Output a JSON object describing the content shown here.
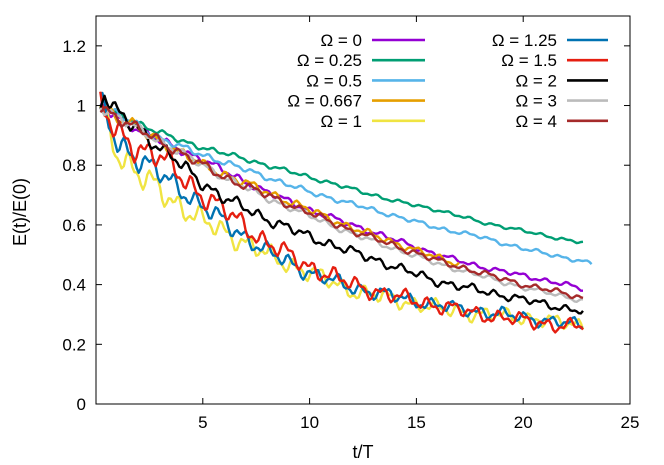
{
  "chart_data": {
    "type": "line",
    "title": "",
    "xlabel": "t/T",
    "ylabel": "E(t)/E(0)",
    "xlim": [
      0,
      25
    ],
    "ylim": [
      0,
      1.3
    ],
    "x_ticks": [
      "5",
      "10",
      "15",
      "20",
      "25"
    ],
    "y_ticks": [
      "0",
      "0.2",
      "0.4",
      "0.6",
      "0.8",
      "1",
      "1.2"
    ],
    "grid": false,
    "legend_position": "top-right, two columns",
    "series": [
      {
        "name": "Ω = 0",
        "color": "#9400d3",
        "x": [
          0.2,
          1,
          2,
          3,
          4,
          5,
          6,
          8,
          10,
          12,
          14,
          16,
          18,
          20,
          22,
          22.8
        ],
        "y": [
          1.0,
          0.96,
          0.92,
          0.88,
          0.85,
          0.82,
          0.78,
          0.71,
          0.65,
          0.6,
          0.55,
          0.5,
          0.46,
          0.43,
          0.4,
          0.385
        ],
        "noise": 0.012
      },
      {
        "name": "Ω = 0.25",
        "color": "#009e73",
        "x": [
          0.2,
          1,
          2,
          3,
          4,
          6,
          8,
          10,
          12,
          14,
          16,
          18,
          20,
          22,
          22.8
        ],
        "y": [
          1.0,
          0.97,
          0.94,
          0.91,
          0.88,
          0.84,
          0.8,
          0.76,
          0.72,
          0.68,
          0.65,
          0.61,
          0.58,
          0.55,
          0.54
        ],
        "noise": 0.008
      },
      {
        "name": "Ω = 0.5",
        "color": "#56b4e9",
        "x": [
          0.2,
          1,
          2,
          3,
          4,
          6,
          8,
          10,
          12,
          14,
          16,
          18,
          20,
          22,
          23.2
        ],
        "y": [
          1.0,
          0.97,
          0.93,
          0.89,
          0.86,
          0.81,
          0.76,
          0.71,
          0.67,
          0.63,
          0.59,
          0.56,
          0.52,
          0.49,
          0.47
        ],
        "noise": 0.01
      },
      {
        "name": "Ω = 0.667",
        "color": "#e69f00",
        "x": [
          0.2,
          1,
          2,
          3,
          4,
          5,
          6,
          8,
          10,
          12,
          14,
          16,
          17
        ],
        "y": [
          1.0,
          0.96,
          0.92,
          0.88,
          0.84,
          0.8,
          0.77,
          0.71,
          0.65,
          0.59,
          0.54,
          0.49,
          0.47
        ],
        "noise": 0.015
      },
      {
        "name": "Ω = 1",
        "color": "#f0e442",
        "x": [
          0.2,
          1,
          2,
          3,
          4,
          5,
          6,
          8,
          10,
          12,
          14,
          16,
          18,
          20,
          22,
          22.8
        ],
        "y": [
          1.0,
          0.85,
          0.76,
          0.72,
          0.66,
          0.61,
          0.58,
          0.5,
          0.44,
          0.38,
          0.35,
          0.32,
          0.3,
          0.29,
          0.27,
          0.265
        ],
        "noise": 0.035
      },
      {
        "name": "Ω = 1.25",
        "color": "#0072b2",
        "x": [
          0.2,
          1,
          2,
          3,
          4,
          5,
          6,
          8,
          10,
          12,
          14,
          16,
          18,
          20,
          22,
          22.8
        ],
        "y": [
          1.0,
          0.88,
          0.82,
          0.77,
          0.72,
          0.66,
          0.61,
          0.51,
          0.44,
          0.39,
          0.36,
          0.33,
          0.31,
          0.29,
          0.27,
          0.265
        ],
        "noise": 0.03
      },
      {
        "name": "Ω = 1.5",
        "color": "#e51e10",
        "x": [
          0.2,
          1,
          2,
          3,
          4,
          5,
          6,
          8,
          10,
          12,
          14,
          16,
          18,
          20,
          22,
          22.8
        ],
        "y": [
          1.0,
          0.9,
          0.86,
          0.83,
          0.76,
          0.7,
          0.65,
          0.54,
          0.46,
          0.4,
          0.36,
          0.33,
          0.3,
          0.28,
          0.26,
          0.26
        ],
        "noise": 0.035
      },
      {
        "name": "Ω = 2",
        "color": "#000000",
        "x": [
          0.2,
          0.4,
          1,
          2,
          3,
          4,
          5,
          6,
          8,
          10,
          12,
          14,
          16,
          18,
          20,
          22,
          22.8
        ],
        "y": [
          1.0,
          1.04,
          0.97,
          0.92,
          0.86,
          0.8,
          0.74,
          0.69,
          0.62,
          0.56,
          0.51,
          0.46,
          0.41,
          0.38,
          0.35,
          0.32,
          0.31
        ],
        "noise": 0.02
      },
      {
        "name": "Ω = 3",
        "color": "#bbbbbb",
        "x": [
          0.2,
          1,
          2,
          3,
          4,
          5,
          6,
          8,
          10,
          12,
          14,
          16,
          18,
          20,
          22,
          22.8
        ],
        "y": [
          1.0,
          0.96,
          0.92,
          0.88,
          0.84,
          0.8,
          0.76,
          0.69,
          0.63,
          0.57,
          0.52,
          0.47,
          0.43,
          0.39,
          0.36,
          0.345
        ],
        "noise": 0.012
      },
      {
        "name": "Ω = 4",
        "color": "#a52a2a",
        "x": [
          0.2,
          1,
          2,
          3,
          4,
          5,
          6,
          8,
          10,
          12,
          14,
          16,
          18,
          20,
          22,
          22.8
        ],
        "y": [
          1.0,
          0.96,
          0.92,
          0.88,
          0.84,
          0.8,
          0.76,
          0.7,
          0.64,
          0.58,
          0.53,
          0.48,
          0.44,
          0.4,
          0.37,
          0.355
        ],
        "noise": 0.014
      }
    ]
  }
}
